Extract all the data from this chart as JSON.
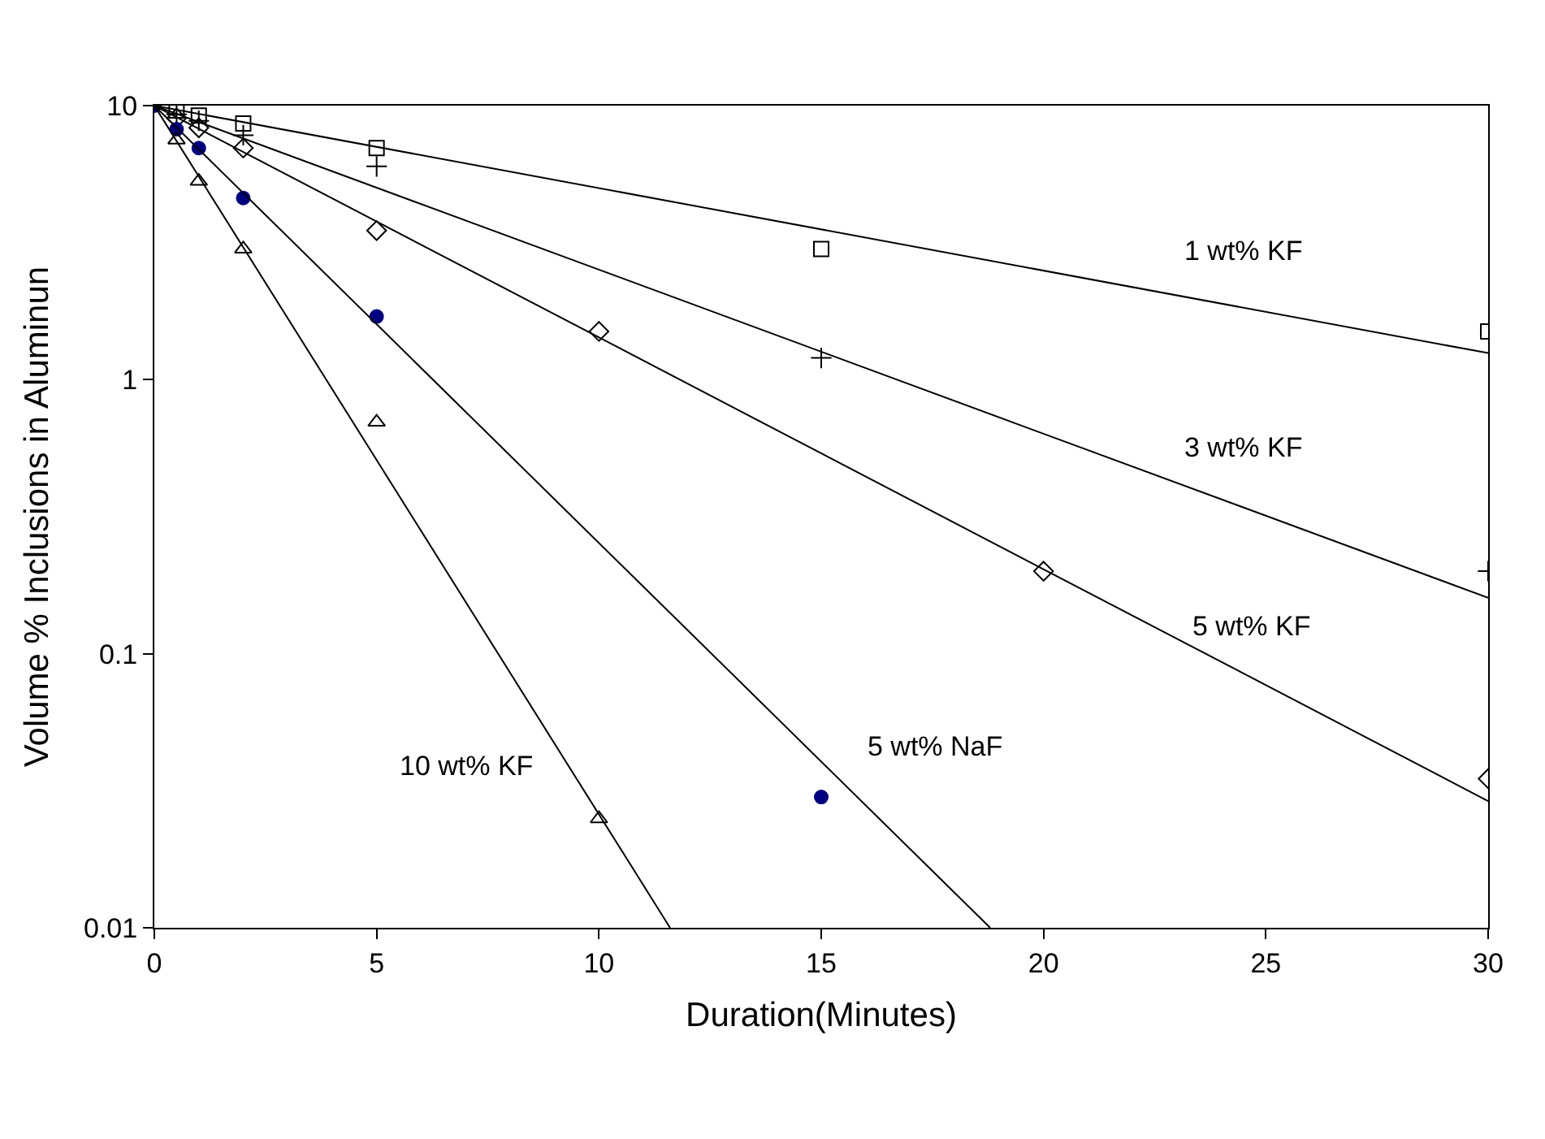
{
  "chart_data": {
    "type": "scatter",
    "xlabel": "Duration(Minutes)",
    "ylabel": "Volume % Inclusions in Aluminun",
    "log": "y",
    "xlim": [
      0,
      30
    ],
    "xticks": [
      0,
      5,
      10,
      15,
      20,
      25,
      30
    ],
    "ylim": [
      0.01,
      10
    ],
    "yticks": [
      0.01,
      0.1,
      1,
      10
    ],
    "series": [
      {
        "marker": "square",
        "color": "#000000",
        "x": [
          0.5,
          1,
          2,
          5,
          15,
          30
        ],
        "values": [
          9.6,
          9.2,
          8.6,
          7,
          3,
          1.5
        ]
      },
      {
        "marker": "cross",
        "color": "#000000",
        "x": [
          0.5,
          1,
          2,
          5,
          15,
          30
        ],
        "values": [
          9.3,
          8.8,
          7.8,
          6,
          1.2,
          0.2
        ]
      },
      {
        "marker": "diamond",
        "color": "#000000",
        "x": [
          0.5,
          1,
          2,
          5,
          10,
          20,
          30
        ],
        "values": [
          9,
          8.3,
          7,
          3.5,
          1.5,
          0.2,
          0.035
        ]
      },
      {
        "marker": "circle",
        "color": "#000080",
        "x": [
          0,
          0.5,
          1,
          2,
          5,
          15
        ],
        "values": [
          10,
          8.2,
          7,
          4.6,
          1.7,
          0.03
        ]
      },
      {
        "marker": "triangle",
        "color": "#000000",
        "x": [
          0.5,
          1,
          2,
          5,
          10
        ],
        "values": [
          7.5,
          5.3,
          3,
          0.7,
          0.025
        ]
      },
      {
        "type": "line",
        "marker": "none",
        "color": "#000000",
        "x": [
          0,
          30
        ],
        "values": [
          10,
          1.25
        ]
      },
      {
        "type": "line",
        "marker": "none",
        "color": "#000000",
        "x": [
          0,
          30
        ],
        "values": [
          10,
          0.16
        ]
      },
      {
        "type": "line",
        "marker": "none",
        "color": "#000000",
        "x": [
          0,
          30
        ],
        "values": [
          10,
          0.029
        ]
      },
      {
        "type": "line",
        "marker": "none",
        "color": "#000000",
        "x": [
          0,
          18.8
        ],
        "values": [
          10,
          0.01
        ]
      },
      {
        "type": "line",
        "marker": "none",
        "color": "#000000",
        "x": [
          0,
          11.6
        ],
        "values": [
          10,
          0.01
        ]
      }
    ],
    "annotations": [
      {
        "text": "1 wt% KF",
        "x": 24.5,
        "y": 1.83
      },
      {
        "text": "3 wt% KF",
        "x": 24.5,
        "y": 0.34
      },
      {
        "text": "5 wt% KF",
        "x": 24.7,
        "y": 0.081
      },
      {
        "text": "5 wt% NaF",
        "x": 14.65,
        "y": 0.046
      },
      {
        "text": "10 wt% KF",
        "x": 9.31,
        "y": 0.039
      }
    ]
  }
}
